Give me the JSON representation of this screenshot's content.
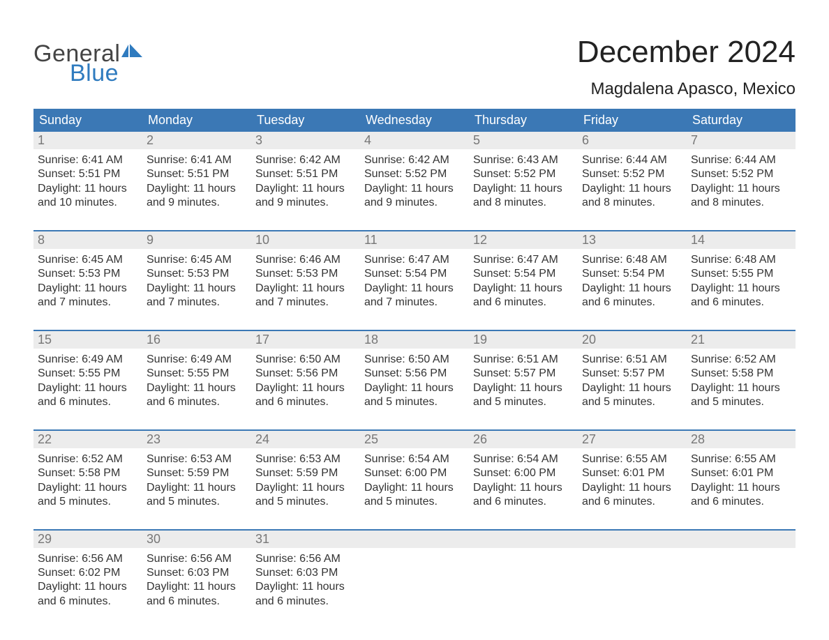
{
  "brand": {
    "general": "General",
    "blue": "Blue"
  },
  "title": "December 2024",
  "location": "Magdalena Apasco, Mexico",
  "colors": {
    "header_bg": "#3b78b5",
    "header_text": "#ffffff",
    "daynum_bg": "#ececec",
    "daynum_text": "#777777",
    "body_text": "#333333",
    "accent": "#2f7bbf"
  },
  "day_labels": [
    "Sunday",
    "Monday",
    "Tuesday",
    "Wednesday",
    "Thursday",
    "Friday",
    "Saturday"
  ],
  "weeks": [
    [
      {
        "n": "1",
        "sunrise": "6:41 AM",
        "sunset": "5:51 PM",
        "daylight": "11 hours and 10 minutes."
      },
      {
        "n": "2",
        "sunrise": "6:41 AM",
        "sunset": "5:51 PM",
        "daylight": "11 hours and 9 minutes."
      },
      {
        "n": "3",
        "sunrise": "6:42 AM",
        "sunset": "5:51 PM",
        "daylight": "11 hours and 9 minutes."
      },
      {
        "n": "4",
        "sunrise": "6:42 AM",
        "sunset": "5:52 PM",
        "daylight": "11 hours and 9 minutes."
      },
      {
        "n": "5",
        "sunrise": "6:43 AM",
        "sunset": "5:52 PM",
        "daylight": "11 hours and 8 minutes."
      },
      {
        "n": "6",
        "sunrise": "6:44 AM",
        "sunset": "5:52 PM",
        "daylight": "11 hours and 8 minutes."
      },
      {
        "n": "7",
        "sunrise": "6:44 AM",
        "sunset": "5:52 PM",
        "daylight": "11 hours and 8 minutes."
      }
    ],
    [
      {
        "n": "8",
        "sunrise": "6:45 AM",
        "sunset": "5:53 PM",
        "daylight": "11 hours and 7 minutes."
      },
      {
        "n": "9",
        "sunrise": "6:45 AM",
        "sunset": "5:53 PM",
        "daylight": "11 hours and 7 minutes."
      },
      {
        "n": "10",
        "sunrise": "6:46 AM",
        "sunset": "5:53 PM",
        "daylight": "11 hours and 7 minutes."
      },
      {
        "n": "11",
        "sunrise": "6:47 AM",
        "sunset": "5:54 PM",
        "daylight": "11 hours and 7 minutes."
      },
      {
        "n": "12",
        "sunrise": "6:47 AM",
        "sunset": "5:54 PM",
        "daylight": "11 hours and 6 minutes."
      },
      {
        "n": "13",
        "sunrise": "6:48 AM",
        "sunset": "5:54 PM",
        "daylight": "11 hours and 6 minutes."
      },
      {
        "n": "14",
        "sunrise": "6:48 AM",
        "sunset": "5:55 PM",
        "daylight": "11 hours and 6 minutes."
      }
    ],
    [
      {
        "n": "15",
        "sunrise": "6:49 AM",
        "sunset": "5:55 PM",
        "daylight": "11 hours and 6 minutes."
      },
      {
        "n": "16",
        "sunrise": "6:49 AM",
        "sunset": "5:55 PM",
        "daylight": "11 hours and 6 minutes."
      },
      {
        "n": "17",
        "sunrise": "6:50 AM",
        "sunset": "5:56 PM",
        "daylight": "11 hours and 6 minutes."
      },
      {
        "n": "18",
        "sunrise": "6:50 AM",
        "sunset": "5:56 PM",
        "daylight": "11 hours and 5 minutes."
      },
      {
        "n": "19",
        "sunrise": "6:51 AM",
        "sunset": "5:57 PM",
        "daylight": "11 hours and 5 minutes."
      },
      {
        "n": "20",
        "sunrise": "6:51 AM",
        "sunset": "5:57 PM",
        "daylight": "11 hours and 5 minutes."
      },
      {
        "n": "21",
        "sunrise": "6:52 AM",
        "sunset": "5:58 PM",
        "daylight": "11 hours and 5 minutes."
      }
    ],
    [
      {
        "n": "22",
        "sunrise": "6:52 AM",
        "sunset": "5:58 PM",
        "daylight": "11 hours and 5 minutes."
      },
      {
        "n": "23",
        "sunrise": "6:53 AM",
        "sunset": "5:59 PM",
        "daylight": "11 hours and 5 minutes."
      },
      {
        "n": "24",
        "sunrise": "6:53 AM",
        "sunset": "5:59 PM",
        "daylight": "11 hours and 5 minutes."
      },
      {
        "n": "25",
        "sunrise": "6:54 AM",
        "sunset": "6:00 PM",
        "daylight": "11 hours and 5 minutes."
      },
      {
        "n": "26",
        "sunrise": "6:54 AM",
        "sunset": "6:00 PM",
        "daylight": "11 hours and 6 minutes."
      },
      {
        "n": "27",
        "sunrise": "6:55 AM",
        "sunset": "6:01 PM",
        "daylight": "11 hours and 6 minutes."
      },
      {
        "n": "28",
        "sunrise": "6:55 AM",
        "sunset": "6:01 PM",
        "daylight": "11 hours and 6 minutes."
      }
    ],
    [
      {
        "n": "29",
        "sunrise": "6:56 AM",
        "sunset": "6:02 PM",
        "daylight": "11 hours and 6 minutes."
      },
      {
        "n": "30",
        "sunrise": "6:56 AM",
        "sunset": "6:03 PM",
        "daylight": "11 hours and 6 minutes."
      },
      {
        "n": "31",
        "sunrise": "6:56 AM",
        "sunset": "6:03 PM",
        "daylight": "11 hours and 6 minutes."
      },
      null,
      null,
      null,
      null
    ]
  ],
  "labels": {
    "sunrise_prefix": "Sunrise: ",
    "sunset_prefix": "Sunset: ",
    "daylight_prefix": "Daylight: "
  }
}
